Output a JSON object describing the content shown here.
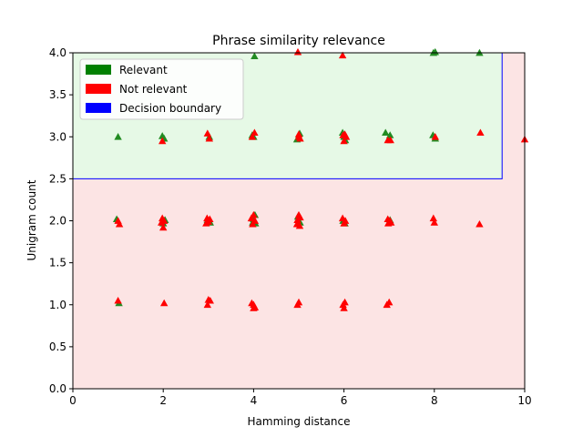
{
  "chart_data": {
    "type": "scatter",
    "title": "Phrase similarity relevance",
    "xlabel": "Hamming distance",
    "ylabel": "Unigram count",
    "xlim": [
      0,
      10
    ],
    "ylim": [
      0,
      4
    ],
    "xticks": [
      "0",
      "2",
      "4",
      "6",
      "8",
      "10"
    ],
    "xtick_values": [
      0,
      2,
      4,
      6,
      8,
      10
    ],
    "yticks": [
      "0.0",
      "0.5",
      "1.0",
      "1.5",
      "2.0",
      "2.5",
      "3.0",
      "3.5",
      "4.0"
    ],
    "ytick_values": [
      0,
      0.5,
      1,
      1.5,
      2,
      2.5,
      3,
      3.5,
      4
    ],
    "grid": false,
    "marker": "triangle",
    "regions": [
      {
        "name": "relevant-region",
        "x": [
          0,
          9.5
        ],
        "y": [
          2.5,
          4
        ],
        "color": "#e6f9e6",
        "edge": "#0000ff"
      },
      {
        "name": "not-relevant-region",
        "x": [
          0,
          10
        ],
        "y": [
          0,
          4
        ],
        "color": "#fce4e4"
      }
    ],
    "legend": {
      "placement": "upper-left",
      "entries": [
        {
          "label": "Relevant",
          "color": "#008000"
        },
        {
          "label": "Not relevant",
          "color": "#ff0000"
        },
        {
          "label": "Decision boundary",
          "color": "#0000ff"
        }
      ]
    },
    "series": [
      {
        "name": "Relevant",
        "color": "#228b22",
        "points": [
          [
            0.97,
            2.02
          ],
          [
            1.0,
            3.0
          ],
          [
            1.02,
            1.02
          ],
          [
            1.98,
            3.01
          ],
          [
            2.02,
            2.98
          ],
          [
            2.04,
            2.01
          ],
          [
            2.0,
            1.97
          ],
          [
            3.02,
            3.0
          ],
          [
            2.98,
            2.01
          ],
          [
            3.04,
            1.98
          ],
          [
            3.97,
            3.02
          ],
          [
            4.0,
            3.0
          ],
          [
            4.02,
            3.96
          ],
          [
            4.03,
            2.07
          ],
          [
            4.0,
            2.02
          ],
          [
            4.04,
            1.97
          ],
          [
            3.98,
            1.98
          ],
          [
            4.96,
            2.97
          ],
          [
            5.02,
            3.04
          ],
          [
            5.0,
            2.98
          ],
          [
            4.98,
            2.05
          ],
          [
            5.03,
            1.98
          ],
          [
            5.97,
            3.05
          ],
          [
            6.0,
            3.0
          ],
          [
            6.03,
            2.96
          ],
          [
            5.98,
            2.0
          ],
          [
            6.02,
            1.97
          ],
          [
            6.92,
            3.05
          ],
          [
            7.02,
            3.02
          ],
          [
            7.0,
            2.97
          ],
          [
            7.02,
            2.01
          ],
          [
            7.97,
            3.02
          ],
          [
            8.02,
            2.98
          ],
          [
            7.98,
            4.0
          ],
          [
            8.02,
            4.01
          ],
          [
            9.0,
            4.0
          ]
        ]
      },
      {
        "name": "Not relevant",
        "color": "#ff0000",
        "points": [
          [
            1.0,
            2.0
          ],
          [
            1.03,
            1.96
          ],
          [
            1.0,
            1.05
          ],
          [
            1.98,
            2.03
          ],
          [
            2.02,
            2.0
          ],
          [
            1.96,
            1.98
          ],
          [
            2.0,
            1.92
          ],
          [
            2.02,
            1.02
          ],
          [
            1.98,
            2.95
          ],
          [
            2.98,
            3.04
          ],
          [
            3.02,
            2.98
          ],
          [
            2.97,
            2.03
          ],
          [
            3.0,
            1.99
          ],
          [
            3.03,
            2.02
          ],
          [
            2.95,
            1.97
          ],
          [
            3.0,
            1.06
          ],
          [
            2.98,
            1.0
          ],
          [
            3.04,
            1.05
          ],
          [
            4.02,
            3.05
          ],
          [
            3.97,
            3.0
          ],
          [
            3.95,
            2.03
          ],
          [
            4.0,
            2.07
          ],
          [
            4.03,
            2.0
          ],
          [
            3.98,
            1.96
          ],
          [
            3.96,
            1.02
          ],
          [
            4.0,
            0.96
          ],
          [
            4.03,
            0.97
          ],
          [
            4.0,
            1.0
          ],
          [
            4.98,
            4.01
          ],
          [
            5.0,
            3.0
          ],
          [
            5.03,
            2.98
          ],
          [
            4.97,
            2.01
          ],
          [
            5.0,
            2.07
          ],
          [
            5.03,
            2.04
          ],
          [
            4.96,
            1.96
          ],
          [
            5.02,
            1.94
          ],
          [
            4.97,
            1.0
          ],
          [
            5.0,
            1.03
          ],
          [
            5.97,
            3.97
          ],
          [
            5.98,
            3.02
          ],
          [
            6.02,
            3.03
          ],
          [
            6.05,
            3.0
          ],
          [
            6.0,
            2.95
          ],
          [
            5.97,
            2.03
          ],
          [
            6.03,
            2.0
          ],
          [
            6.0,
            1.97
          ],
          [
            6.02,
            1.03
          ],
          [
            5.98,
            1.0
          ],
          [
            6.0,
            0.96
          ],
          [
            6.97,
            2.02
          ],
          [
            7.02,
            2.0
          ],
          [
            6.98,
            1.97
          ],
          [
            7.04,
            1.98
          ],
          [
            7.0,
            1.03
          ],
          [
            6.95,
            1.0
          ],
          [
            6.97,
            2.96
          ],
          [
            7.03,
            2.96
          ],
          [
            8.02,
            3.0
          ],
          [
            7.98,
            2.03
          ],
          [
            8.0,
            1.98
          ],
          [
            9.02,
            3.05
          ],
          [
            9.0,
            1.96
          ],
          [
            10.0,
            2.97
          ],
          [
            5.0,
            3.03
          ]
        ]
      }
    ]
  }
}
